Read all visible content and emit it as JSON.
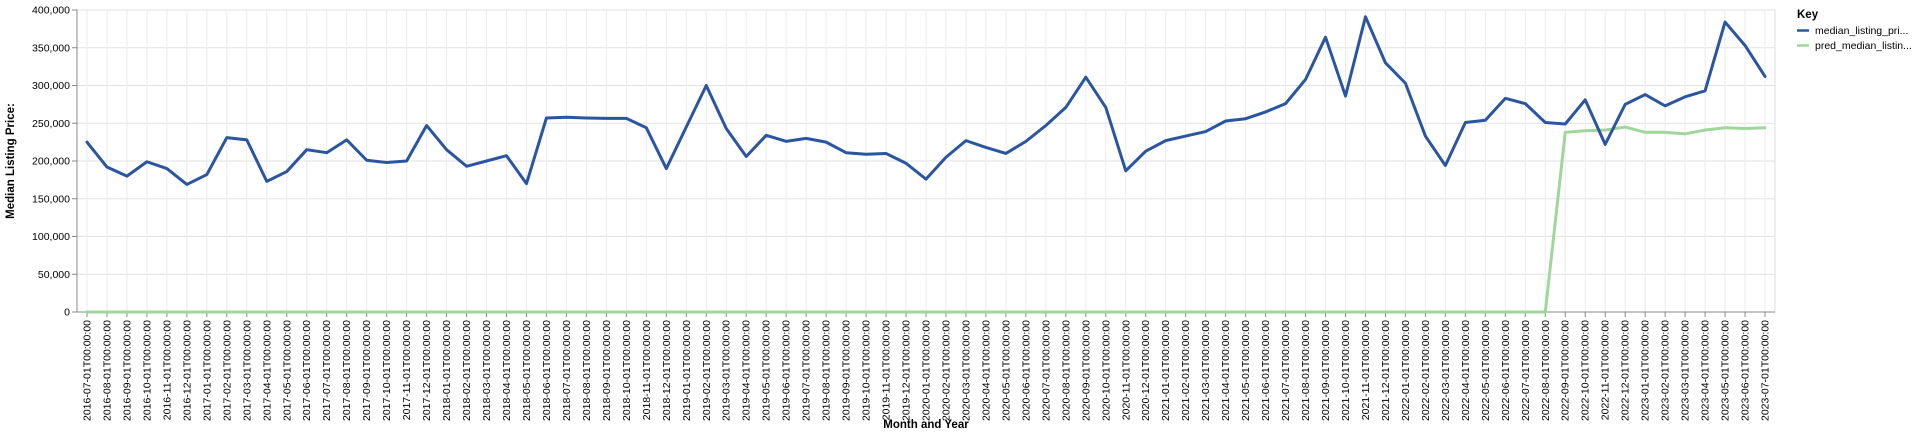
{
  "chart_data": {
    "type": "line",
    "xlabel": "Month and Year",
    "ylabel": "Median Listing Price:",
    "ylim": [
      0,
      400000
    ],
    "yticks": [
      "0",
      "50,000",
      "100,000",
      "150,000",
      "200,000",
      "250,000",
      "300,000",
      "350,000",
      "400,000"
    ],
    "grid": true,
    "legend_position": "right",
    "legend_title": "Key",
    "x": [
      "2016-07-01T00:00:00",
      "2016-08-01T00:00:00",
      "2016-09-01T00:00:00",
      "2016-10-01T00:00:00",
      "2016-11-01T00:00:00",
      "2016-12-01T00:00:00",
      "2017-01-01T00:00:00",
      "2017-02-01T00:00:00",
      "2017-03-01T00:00:00",
      "2017-04-01T00:00:00",
      "2017-05-01T00:00:00",
      "2017-06-01T00:00:00",
      "2017-07-01T00:00:00",
      "2017-08-01T00:00:00",
      "2017-09-01T00:00:00",
      "2017-10-01T00:00:00",
      "2017-11-01T00:00:00",
      "2017-12-01T00:00:00",
      "2018-01-01T00:00:00",
      "2018-02-01T00:00:00",
      "2018-03-01T00:00:00",
      "2018-04-01T00:00:00",
      "2018-05-01T00:00:00",
      "2018-06-01T00:00:00",
      "2018-07-01T00:00:00",
      "2018-08-01T00:00:00",
      "2018-09-01T00:00:00",
      "2018-10-01T00:00:00",
      "2018-11-01T00:00:00",
      "2018-12-01T00:00:00",
      "2019-01-01T00:00:00",
      "2019-02-01T00:00:00",
      "2019-03-01T00:00:00",
      "2019-04-01T00:00:00",
      "2019-05-01T00:00:00",
      "2019-06-01T00:00:00",
      "2019-07-01T00:00:00",
      "2019-08-01T00:00:00",
      "2019-09-01T00:00:00",
      "2019-10-01T00:00:00",
      "2019-11-01T00:00:00",
      "2019-12-01T00:00:00",
      "2020-01-01T00:00:00",
      "2020-02-01T00:00:00",
      "2020-03-01T00:00:00",
      "2020-04-01T00:00:00",
      "2020-05-01T00:00:00",
      "2020-06-01T00:00:00",
      "2020-07-01T00:00:00",
      "2020-08-01T00:00:00",
      "2020-09-01T00:00:00",
      "2020-10-01T00:00:00",
      "2020-11-01T00:00:00",
      "2020-12-01T00:00:00",
      "2021-01-01T00:00:00",
      "2021-02-01T00:00:00",
      "2021-03-01T00:00:00",
      "2021-04-01T00:00:00",
      "2021-05-01T00:00:00",
      "2021-06-01T00:00:00",
      "2021-07-01T00:00:00",
      "2021-08-01T00:00:00",
      "2021-09-01T00:00:00",
      "2021-10-01T00:00:00",
      "2021-11-01T00:00:00",
      "2021-12-01T00:00:00",
      "2022-01-01T00:00:00",
      "2022-02-01T00:00:00",
      "2022-03-01T00:00:00",
      "2022-04-01T00:00:00",
      "2022-05-01T00:00:00",
      "2022-06-01T00:00:00",
      "2022-07-01T00:00:00",
      "2022-08-01T00:00:00",
      "2022-09-01T00:00:00",
      "2022-10-01T00:00:00",
      "2022-11-01T00:00:00",
      "2022-12-01T00:00:00",
      "2023-01-01T00:00:00",
      "2023-02-01T00:00:00",
      "2023-03-01T00:00:00",
      "2023-04-01T00:00:00",
      "2023-05-01T00:00:00",
      "2023-06-01T00:00:00",
      "2023-07-01T00:00:00"
    ],
    "series": [
      {
        "name": "median_listing_pri...",
        "color": "#2a55a0",
        "values": [
          225000,
          192000,
          180000,
          199000,
          190000,
          169000,
          182000,
          231000,
          228000,
          173000,
          186000,
          215000,
          211000,
          228000,
          201000,
          198000,
          200000,
          247000,
          215000,
          193000,
          200000,
          207000,
          170000,
          257000,
          258000,
          257000,
          256500,
          256500,
          244000,
          190000,
          245000,
          300000,
          243000,
          206000,
          234000,
          226000,
          230000,
          225000,
          211000,
          209000,
          210000,
          197000,
          176000,
          205000,
          227000,
          218000,
          210000,
          226000,
          247000,
          271000,
          311000,
          271000,
          187000,
          213000,
          227000,
          233000,
          239000,
          253000,
          256000,
          265000,
          276000,
          308000,
          364000,
          286000,
          391000,
          330000,
          303000,
          233000,
          194000,
          251000,
          254000,
          283000,
          276000,
          251000,
          249000,
          281000,
          222000,
          275000,
          288000,
          273000,
          285000,
          293000,
          384000,
          353000,
          312000
        ]
      },
      {
        "name": "pred_median_listin...",
        "color": "#9fd79a",
        "values": [
          0,
          0,
          0,
          0,
          0,
          0,
          0,
          0,
          0,
          0,
          0,
          0,
          0,
          0,
          0,
          0,
          0,
          0,
          0,
          0,
          0,
          0,
          0,
          0,
          0,
          0,
          0,
          0,
          0,
          0,
          0,
          0,
          0,
          0,
          0,
          0,
          0,
          0,
          0,
          0,
          0,
          0,
          0,
          0,
          0,
          0,
          0,
          0,
          0,
          0,
          0,
          0,
          0,
          0,
          0,
          0,
          0,
          0,
          0,
          0,
          0,
          0,
          0,
          0,
          0,
          0,
          0,
          0,
          0,
          0,
          0,
          0,
          0,
          0,
          238000,
          240000,
          241000,
          245000,
          238000,
          238000,
          236000,
          241000,
          244000,
          243000,
          244000
        ]
      }
    ]
  }
}
